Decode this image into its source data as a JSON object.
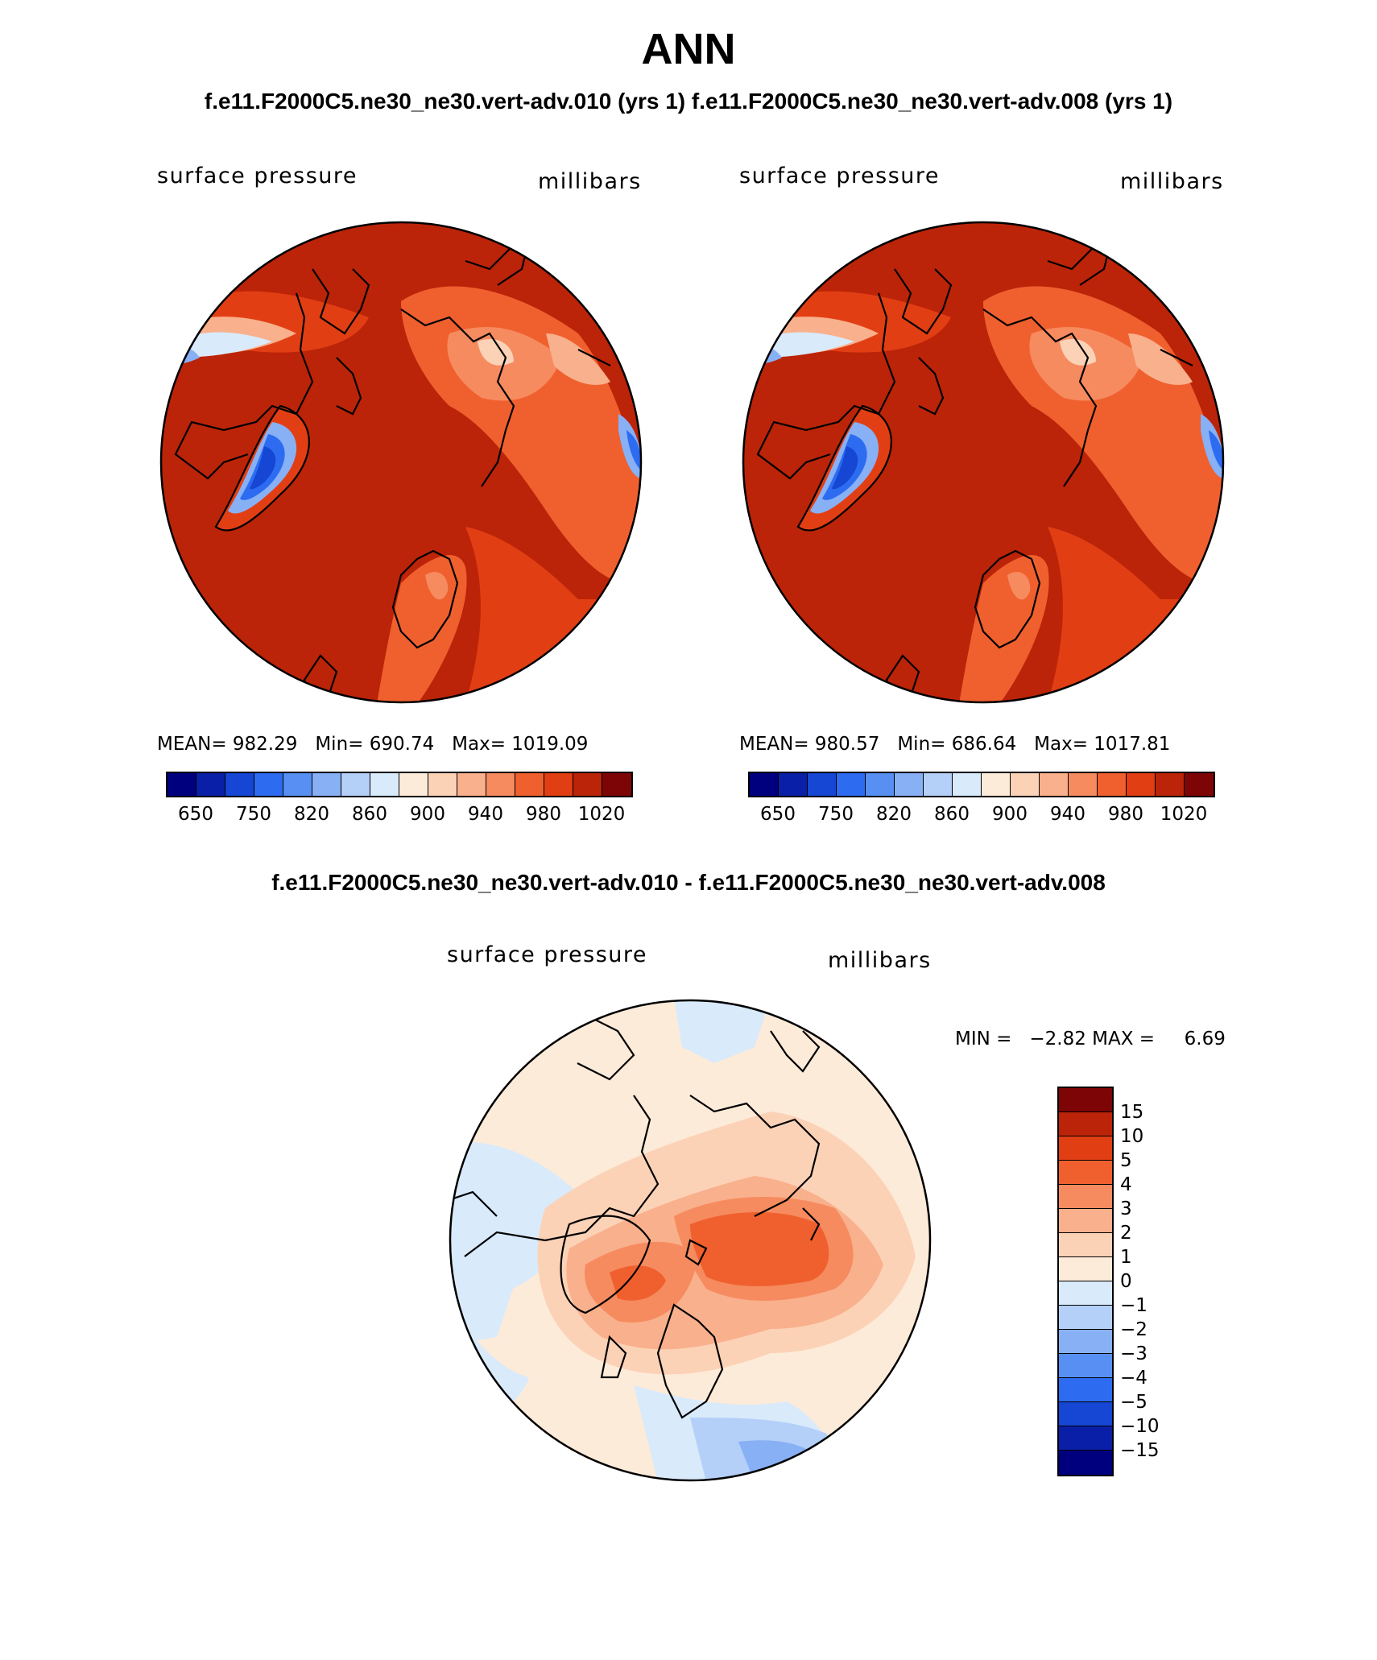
{
  "header": {
    "title": "ANN",
    "subtitle": "f.e11.F2000C5.ne30_ne30.vert-adv.010 (yrs 1) f.e11.F2000C5.ne30_ne30.vert-adv.008 (yrs 1)",
    "diff_title": "f.e11.F2000C5.ne30_ne30.vert-adv.010 - f.e11.F2000C5.ne30_ne30.vert-adv.008"
  },
  "panels": [
    {
      "variable": "surface pressure",
      "units": "millibars",
      "stats": {
        "mean_label": "MEAN=",
        "mean": "982.29",
        "min_label": "Min=",
        "min": "690.74",
        "max_label": "Max=",
        "max": "1019.09"
      }
    },
    {
      "variable": "surface pressure",
      "units": "millibars",
      "stats": {
        "mean_label": "MEAN=",
        "mean": "980.57",
        "min_label": "Min=",
        "min": "686.64",
        "max_label": "Max=",
        "max": "1017.81"
      }
    }
  ],
  "diff_panel": {
    "variable": "surface pressure",
    "units": "millibars",
    "min_label": "MIN =",
    "min": "−2.82",
    "max_label": "MAX =",
    "max": "6.69"
  },
  "colorbar_main": {
    "colors": [
      "#00007f",
      "#0a1fa8",
      "#1546d4",
      "#2d6cf0",
      "#5790f2",
      "#87b0f5",
      "#b4cff8",
      "#d9eafb",
      "#fdebd9",
      "#fcd2b7",
      "#f9b08c",
      "#f68b5f",
      "#f0602f",
      "#e23e14",
      "#bb2408",
      "#7e0505"
    ],
    "labels": [
      "650",
      "750",
      "820",
      "860",
      "900",
      "940",
      "980",
      "1020"
    ]
  },
  "colorbar_diff": {
    "colors": [
      "#00007f",
      "#0a1fa8",
      "#1546d4",
      "#2d6cf0",
      "#5790f2",
      "#87b0f5",
      "#b4cff8",
      "#d9eafb",
      "#fdebd9",
      "#fcd2b7",
      "#f9b08c",
      "#f68b5f",
      "#f0602f",
      "#e23e14",
      "#bb2408",
      "#7e0505"
    ],
    "labels": [
      "−15",
      "−10",
      "−5",
      "−4",
      "−3",
      "−2",
      "−1",
      "0",
      "1",
      "2",
      "3",
      "4",
      "5",
      "10",
      "15"
    ]
  },
  "colors": {
    "map_base": "#bb2408",
    "outline": "#000000"
  }
}
